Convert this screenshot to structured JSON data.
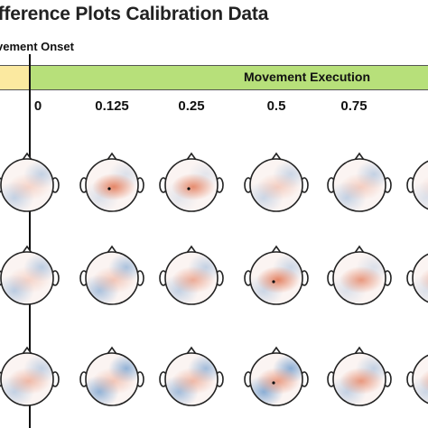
{
  "header": {
    "title": "ifference Plots Calibration Data",
    "onset_label": "vement Onset",
    "execution_label": "Movement Execution"
  },
  "time_ticks": [
    "0",
    "0.125",
    "0.25",
    "0.5",
    "0.75"
  ],
  "colors": {
    "pre_phase": "#fbe9a0",
    "execution_phase": "#b7e07a",
    "positive": "#e0714d",
    "negative": "#5b8fc7"
  },
  "maps": [
    {
      "row": 1,
      "col": 0,
      "pos": 0.25,
      "neg": 0.35,
      "marker": false
    },
    {
      "row": 1,
      "col": 1,
      "pos": 0.85,
      "neg": 0.2,
      "marker": true
    },
    {
      "row": 1,
      "col": 2,
      "pos": 0.8,
      "neg": 0.15,
      "marker": true
    },
    {
      "row": 1,
      "col": 3,
      "pos": 0.3,
      "neg": 0.3,
      "marker": false
    },
    {
      "row": 1,
      "col": 4,
      "pos": 0.3,
      "neg": 0.35,
      "marker": false
    },
    {
      "row": 1,
      "col": 5,
      "pos": 0.2,
      "neg": 0.2,
      "marker": false
    },
    {
      "row": 2,
      "col": 0,
      "pos": 0.25,
      "neg": 0.4,
      "marker": false
    },
    {
      "row": 2,
      "col": 1,
      "pos": 0.35,
      "neg": 0.5,
      "marker": false
    },
    {
      "row": 2,
      "col": 2,
      "pos": 0.55,
      "neg": 0.35,
      "marker": false
    },
    {
      "row": 2,
      "col": 3,
      "pos": 0.85,
      "neg": 0.3,
      "marker": true
    },
    {
      "row": 2,
      "col": 4,
      "pos": 0.7,
      "neg": 0.2,
      "marker": false
    },
    {
      "row": 2,
      "col": 5,
      "pos": 0.5,
      "neg": 0.2,
      "marker": false
    },
    {
      "row": 3,
      "col": 0,
      "pos": 0.45,
      "neg": 0.35,
      "marker": false
    },
    {
      "row": 3,
      "col": 1,
      "pos": 0.35,
      "neg": 0.65,
      "marker": false
    },
    {
      "row": 3,
      "col": 2,
      "pos": 0.45,
      "neg": 0.55,
      "marker": false
    },
    {
      "row": 3,
      "col": 3,
      "pos": 0.65,
      "neg": 0.7,
      "marker": true
    },
    {
      "row": 3,
      "col": 4,
      "pos": 0.7,
      "neg": 0.35,
      "marker": false
    },
    {
      "row": 3,
      "col": 5,
      "pos": 0.6,
      "neg": 0.3,
      "marker": false
    }
  ]
}
